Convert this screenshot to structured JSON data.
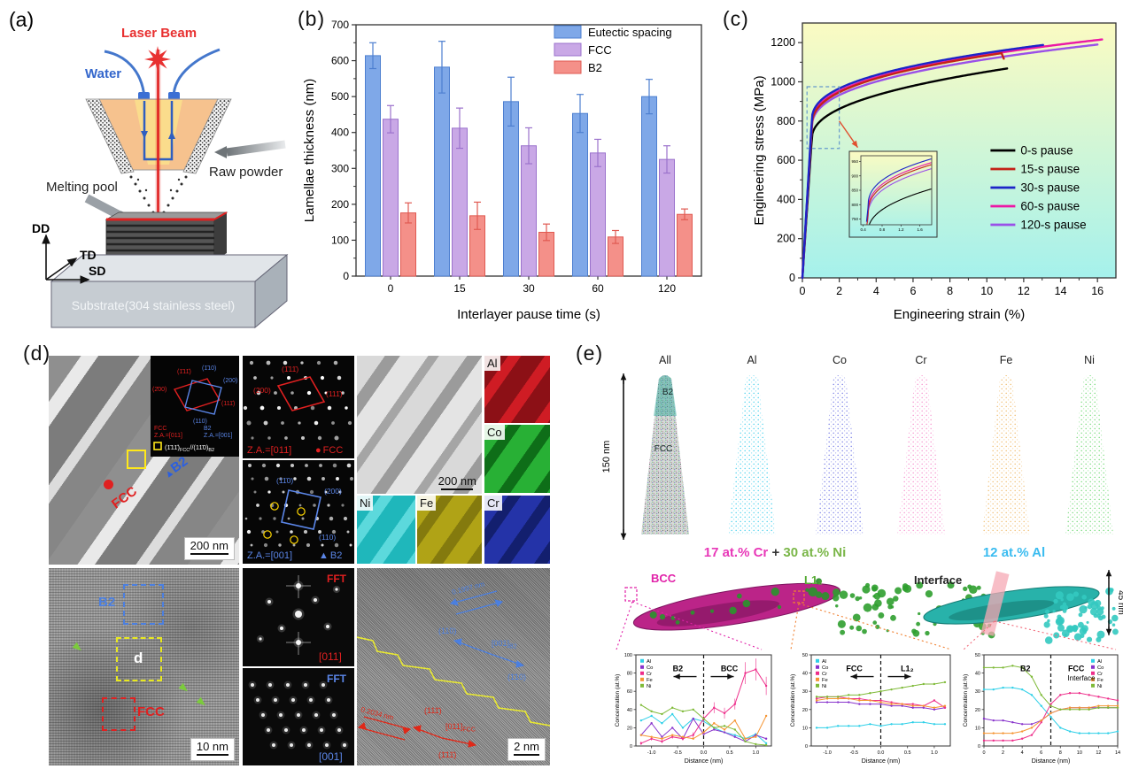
{
  "figure": {
    "panel_a": {
      "label": "(a)",
      "laser": "Laser Beam",
      "water": "Water",
      "raw_powder": "Raw powder",
      "melting_pool": "Melting pool",
      "dd": "DD",
      "td": "TD",
      "sd": "SD",
      "substrate": "Substrate(304 stainless steel)"
    },
    "panel_b": {
      "label": "(b)"
    },
    "panel_c": {
      "label": "(c)"
    },
    "panel_d": {
      "label": "(d)",
      "tem1": {
        "fcc": "FCC",
        "b2": "B2",
        "scale": "200 nm"
      },
      "inset": {
        "r_top": "(1̄11̄)",
        "b_top": "(1̄10)",
        "b_right": "(200)",
        "r_left": "(2̄00)",
        "r_right": "(111̄)",
        "b_bottom": "(110)",
        "fcc1": "FCC",
        "fcc2": "Z.A.=[011]",
        "b21": "B2",
        "b22": "Z.A.=[001]",
        "par1": "(1̄11̄)",
        "par1s": "FCC",
        "par2": "//(11̄0)",
        "par2s": "B2"
      },
      "saed_fcc": {
        "s1": "(1̄11̄)",
        "s2": "(200)",
        "s3": "(111̄)",
        "za": "Z.A.=[011]",
        "marker": "●",
        "phase": "FCC"
      },
      "saed_b2": {
        "s1": "(11̄0)",
        "s2": "(200)",
        "s3": "(110)",
        "za": "Z.A.=[001]",
        "marker": "▲",
        "phase": "B2"
      },
      "stem_scale": "200 nm",
      "eds": [
        {
          "el": "Al"
        },
        {
          "el": "Co"
        },
        {
          "el": "Ni"
        },
        {
          "el": "Fe"
        },
        {
          "el": "Cr"
        }
      ],
      "hrtem": {
        "b2": "B2",
        "d": "d",
        "fcc": "FCC",
        "scale": "10 nm"
      },
      "fft_fcc": {
        "tag": "FFT",
        "za": "[011]"
      },
      "fft_b2": {
        "tag": "FFT",
        "za": "[001]"
      },
      "hrtem2": {
        "d_b2": "0.1997 nm",
        "p_b2a": "(110)",
        "z_b2": "[001]",
        "z_b2s": "B2",
        "p_b2b": "(1̄10)",
        "d_fcc": "0.2034 nm",
        "p_fcca": "(111̄)",
        "z_fcc": "[011]",
        "z_fccs": "FCC",
        "p_fccb": "(1̄11̄)",
        "scale": "2 nm"
      }
    },
    "panel_e": {
      "label": "(e)",
      "height_label": "150 nm",
      "depth_label": "45 nm",
      "all_b2": "B2",
      "all_fcc": "FCC",
      "needles": [
        {
          "label": "All",
          "color": "multi"
        },
        {
          "label": "Al",
          "color": "#55d4ef"
        },
        {
          "label": "Co",
          "color": "#8287e8"
        },
        {
          "label": "Cr",
          "color": "#f79ad2"
        },
        {
          "label": "Fe",
          "color": "#f2c178"
        },
        {
          "label": "Ni",
          "color": "#7edc82"
        }
      ],
      "caption_cr": "17 at.% Cr",
      "caption_plus": " + ",
      "caption_ni": "30 at.% Ni",
      "caption_al": "12 at.% Al",
      "bcc": "BCC",
      "l12": "L1₂",
      "interface": "Interface",
      "accent_colors": {
        "cr_pink": "#e838b8",
        "ni_green": "#7ab648",
        "al_cyan": "#3bbcf0"
      }
    }
  },
  "chart_data": [
    {
      "id": "lamellae_bar",
      "type": "bar",
      "xlabel": "Interlayer pause time (s)",
      "ylabel": "Lamellae thickness (nm)",
      "categories": [
        "0",
        "15",
        "30",
        "60",
        "120"
      ],
      "ylim": [
        0,
        700
      ],
      "yticks": [
        0,
        100,
        200,
        300,
        400,
        500,
        600,
        700
      ],
      "legend_position": "top-right",
      "grid": false,
      "series": [
        {
          "name": "Eutectic spacing",
          "color": "#7fa8e8",
          "stroke": "#4d7fd0",
          "values": [
            614,
            582,
            486,
            453,
            500
          ],
          "errors": [
            36,
            72,
            68,
            53,
            48
          ]
        },
        {
          "name": "FCC",
          "color": "#c9a8e6",
          "stroke": "#9b72cc",
          "values": [
            437,
            412,
            363,
            343,
            325
          ],
          "errors": [
            38,
            56,
            50,
            38,
            38
          ]
        },
        {
          "name": "B2",
          "color": "#f49089",
          "stroke": "#e05a52",
          "values": [
            176,
            168,
            122,
            109,
            172
          ],
          "errors": [
            28,
            38,
            23,
            18,
            15
          ]
        }
      ]
    },
    {
      "id": "stress_strain",
      "type": "line",
      "xlabel": "Engineering strain (%)",
      "ylabel": "Engineering stress (MPa)",
      "xlim": [
        0,
        17
      ],
      "xticks": [
        0,
        2,
        4,
        6,
        8,
        10,
        12,
        14,
        16
      ],
      "ylim": [
        0,
        1300
      ],
      "yticks": [
        0,
        200,
        400,
        600,
        800,
        1000,
        1200
      ],
      "bg_gradient": [
        "#fbfbc2",
        "#a5f1ec"
      ],
      "series": [
        {
          "name": "0-s pause",
          "color": "#000000",
          "knee_strain": 0.5,
          "knee_stress": 700,
          "uts": 1068,
          "elongation": 11.1,
          "exp": 0.42
        },
        {
          "name": "15-s pause",
          "color": "#c42218",
          "knee_strain": 0.5,
          "knee_stress": 762,
          "uts": 1146,
          "elongation": 10.8,
          "exp": 0.38,
          "end_drop": 28
        },
        {
          "name": "30-s pause",
          "color": "#1c24c8",
          "knee_strain": 0.5,
          "knee_stress": 788,
          "uts": 1188,
          "elongation": 13.05,
          "exp": 0.38
        },
        {
          "name": "60-s pause",
          "color": "#ec17a5",
          "knee_strain": 0.5,
          "knee_stress": 772,
          "uts": 1216,
          "elongation": 16.25,
          "exp": 0.38
        },
        {
          "name": "120-s pause",
          "color": "#9a50e8",
          "knee_strain": 0.5,
          "knee_stress": 752,
          "uts": 1190,
          "elongation": 16.0,
          "exp": 0.38
        }
      ],
      "inset": {
        "x_range": [
          0.35,
          1.85
        ],
        "y_range": [
          730,
          970
        ],
        "xticks": [
          0.4,
          0.8,
          1.2,
          1.6
        ],
        "yticks": [
          750,
          800,
          850,
          900,
          950
        ]
      },
      "zoom_box": {
        "x": [
          0.25,
          2.0
        ],
        "y": [
          660,
          975
        ]
      }
    },
    {
      "id": "profile_b2_bcc",
      "type": "line",
      "xlabel": "Distance (nm)",
      "ylabel": "Concentration (at.%)",
      "xlim": [
        -1.3,
        1.3
      ],
      "xticks": [
        -1.0,
        -0.5,
        0.0,
        0.5,
        1.0
      ],
      "ylim": [
        0,
        100
      ],
      "yticks": [
        0,
        20,
        40,
        60,
        80,
        100
      ],
      "divider_x": 0,
      "region_left": "B2",
      "region_right": "BCC",
      "region_arrows": true,
      "x": [
        -1.2,
        -1.0,
        -0.8,
        -0.6,
        -0.4,
        -0.2,
        0,
        0.2,
        0.4,
        0.6,
        0.8,
        1.0,
        1.2
      ],
      "series": [
        {
          "name": "Al",
          "color": "#2fd0e8",
          "values": [
            28,
            33,
            25,
            35,
            20,
            30,
            27,
            20,
            15,
            12,
            8,
            13,
            3
          ]
        },
        {
          "name": "Co",
          "color": "#8833cc",
          "values": [
            12,
            25,
            10,
            20,
            8,
            30,
            13,
            18,
            15,
            10,
            5,
            12,
            8
          ]
        },
        {
          "name": "Cr",
          "color": "#ee2d8a",
          "values": [
            3,
            8,
            5,
            10,
            8,
            12,
            30,
            42,
            36,
            46,
            80,
            84,
            66
          ],
          "errors": [
            2,
            2,
            2,
            2,
            2,
            3,
            5,
            6,
            6,
            6,
            12,
            12,
            10
          ]
        },
        {
          "name": "Fe",
          "color": "#f59533",
          "values": [
            12,
            10,
            8,
            12,
            10,
            8,
            15,
            25,
            18,
            28,
            8,
            10,
            33
          ]
        },
        {
          "name": "Ni",
          "color": "#7fba38",
          "values": [
            45,
            38,
            35,
            42,
            38,
            40,
            30,
            20,
            22,
            18,
            5,
            2,
            1
          ]
        }
      ]
    },
    {
      "id": "profile_fcc_l12",
      "type": "line",
      "xlabel": "Distance (nm)",
      "ylabel": "Concentration (at.%)",
      "xlim": [
        -1.3,
        1.3
      ],
      "xticks": [
        -1.0,
        -0.5,
        0.0,
        0.5,
        1.0
      ],
      "ylim": [
        0,
        50
      ],
      "yticks": [
        0,
        10,
        20,
        30,
        40,
        50
      ],
      "divider_x": 0,
      "region_left": "FCC",
      "region_right": "L1₂",
      "region_arrows": true,
      "x": [
        -1.2,
        -1.0,
        -0.8,
        -0.6,
        -0.4,
        -0.2,
        0,
        0.2,
        0.4,
        0.6,
        0.8,
        1.0,
        1.2
      ],
      "series": [
        {
          "name": "Al",
          "color": "#2fd0e8",
          "values": [
            10,
            10,
            11,
            11,
            11,
            12,
            11,
            12,
            12,
            13,
            13,
            12,
            12
          ]
        },
        {
          "name": "Co",
          "color": "#8833cc",
          "values": [
            24,
            24,
            24,
            24,
            23,
            23,
            23,
            22,
            22,
            21,
            21,
            20,
            21
          ]
        },
        {
          "name": "Cr",
          "color": "#ee2d8a",
          "values": [
            26,
            27,
            27,
            26,
            26,
            25,
            25,
            24,
            23,
            23,
            22,
            25,
            21
          ]
        },
        {
          "name": "Fe",
          "color": "#f59533",
          "values": [
            25,
            26,
            26,
            26,
            25,
            25,
            24,
            23,
            23,
            22,
            22,
            21,
            22
          ]
        },
        {
          "name": "Ni",
          "color": "#7fba38",
          "values": [
            27,
            27,
            27,
            28,
            28,
            29,
            30,
            31,
            32,
            33,
            34,
            34,
            35
          ]
        }
      ]
    },
    {
      "id": "profile_interface",
      "type": "line",
      "xlabel": "Distance (nm)",
      "ylabel": "Concentration (at.%)",
      "xlim": [
        0,
        14
      ],
      "xticks": [
        0,
        2,
        4,
        6,
        8,
        10,
        12,
        14
      ],
      "ylim": [
        0,
        50
      ],
      "yticks": [
        0,
        10,
        20,
        30,
        40,
        50
      ],
      "divider_x": 7,
      "region_left": "B2",
      "region_right": "FCC",
      "region_arrows": false,
      "extra_label": {
        "text": "Interface",
        "x": 10.2,
        "y": 36
      },
      "legend_position": "top-right",
      "x": [
        0,
        1,
        2,
        3,
        4,
        5,
        6,
        7,
        8,
        9,
        10,
        11,
        12,
        13,
        14
      ],
      "series": [
        {
          "name": "Al",
          "color": "#2fd0e8",
          "values": [
            31,
            31,
            32,
            32,
            31,
            28,
            22,
            16,
            10,
            8,
            7,
            7,
            7,
            7,
            8
          ]
        },
        {
          "name": "Co",
          "color": "#8833cc",
          "values": [
            15,
            14,
            14,
            13,
            12,
            12,
            14,
            18,
            20,
            21,
            21,
            21,
            21,
            21,
            21
          ]
        },
        {
          "name": "Cr",
          "color": "#ee2d8a",
          "values": [
            3,
            3,
            3,
            3,
            4,
            6,
            13,
            23,
            28,
            29,
            29,
            28,
            27,
            26,
            25
          ]
        },
        {
          "name": "Fe",
          "color": "#f59533",
          "values": [
            7,
            7,
            7,
            7,
            8,
            10,
            14,
            18,
            20,
            21,
            21,
            21,
            22,
            22,
            22
          ]
        },
        {
          "name": "Ni",
          "color": "#7fba38",
          "values": [
            43,
            43,
            43,
            44,
            43,
            38,
            28,
            22,
            20,
            20,
            20,
            20,
            21,
            21,
            21
          ]
        }
      ]
    }
  ]
}
